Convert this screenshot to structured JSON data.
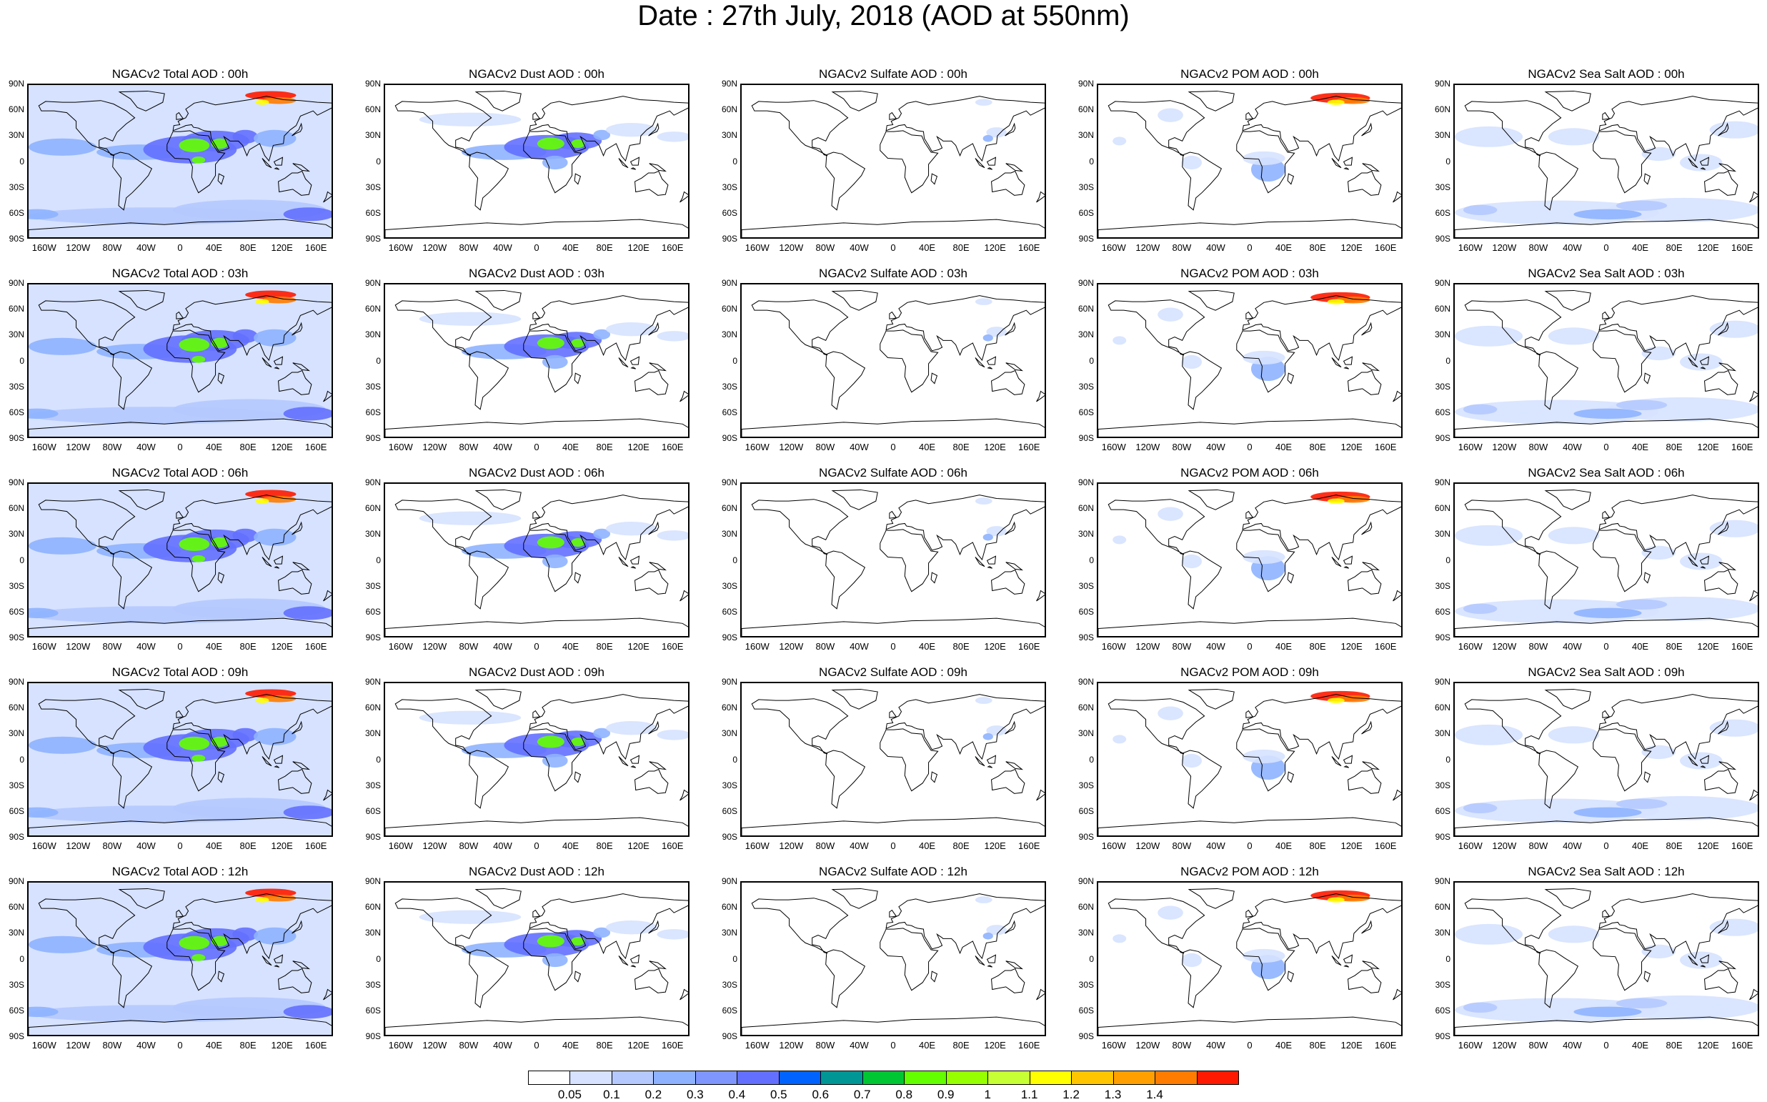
{
  "title": "Date : 27th July, 2018 (AOD at 550nm)",
  "map": {
    "lat_ticks": [
      "90N",
      "60N",
      "30N",
      "0",
      "30S",
      "60S",
      "90S"
    ],
    "lon_ticks": [
      "160W",
      "120W",
      "80W",
      "40W",
      "0",
      "40E",
      "80E",
      "120E",
      "160E"
    ],
    "columns": [
      {
        "key": "total",
        "fill": "total"
      },
      {
        "key": "dust",
        "fill": "dust"
      },
      {
        "key": "sulfate",
        "fill": "sulfate"
      },
      {
        "key": "pom",
        "fill": "pom"
      },
      {
        "key": "seasalt",
        "fill": "seasalt"
      }
    ],
    "panel_titles": [
      [
        "NGACv2 Total AOD : 00h",
        "NGACv2 Dust AOD : 00h",
        "NGACv2 Sulfate AOD : 00h",
        "NGACv2 POM AOD : 00h",
        "NGACv2 Sea Salt AOD : 00h"
      ],
      [
        "NGACv2 Total AOD : 03h",
        "NGACv2 Dust AOD : 03h",
        "NGACv2 Sulfate AOD : 03h",
        "NGACv2 POM AOD : 03h",
        "NGACv2 Sea Salt AOD : 03h"
      ],
      [
        "NGACv2 Total AOD : 06h",
        "NGACv2 Dust AOD : 06h",
        "NGACv2 Sulfate AOD : 06h",
        "NGACv2 POM AOD : 06h",
        "NGACv2 Sea Salt AOD : 06h"
      ],
      [
        "NGACv2 Total AOD : 09h",
        "NGACv2 Dust AOD : 09h",
        "NGACv2 Sulfate AOD : 09h",
        "NGACv2 POM AOD : 09h",
        "NGACv2 Sea Salt  AOD : 09h"
      ],
      [
        "NGACv2 Total AOD : 12h",
        "NGACv2 Dust AOD : 12h",
        "NGACv2 Sulfate AOD : 12h",
        "NGACv2 POM  AOD : 12h",
        "NGACv2 Sea Salt AOD : 12h"
      ]
    ]
  },
  "colorbar": {
    "colors": [
      "#ffffff",
      "#d6e2ff",
      "#b5c9ff",
      "#8eb2ff",
      "#7f96ff",
      "#6370ff",
      "#0063ff",
      "#009696",
      "#00c633",
      "#63ff00",
      "#96ff00",
      "#c6ff33",
      "#ffff00",
      "#ffc600",
      "#ffa000",
      "#ff7c00",
      "#ff1900"
    ],
    "labels": [
      "0.05",
      "0.1",
      "0.2",
      "0.3",
      "0.4",
      "0.5",
      "0.6",
      "0.7",
      "0.8",
      "0.9",
      "1",
      "1.1",
      "1.2",
      "1.3",
      "1.4"
    ]
  },
  "colors": {
    "light": "#d6e2ff",
    "mid": "#b5c9ff",
    "blue": "#8eb2ff",
    "darkblue": "#6370ff",
    "green": "#63ff00",
    "yellow": "#ffff00",
    "orange": "#ff7c00",
    "red": "#ff1900"
  }
}
